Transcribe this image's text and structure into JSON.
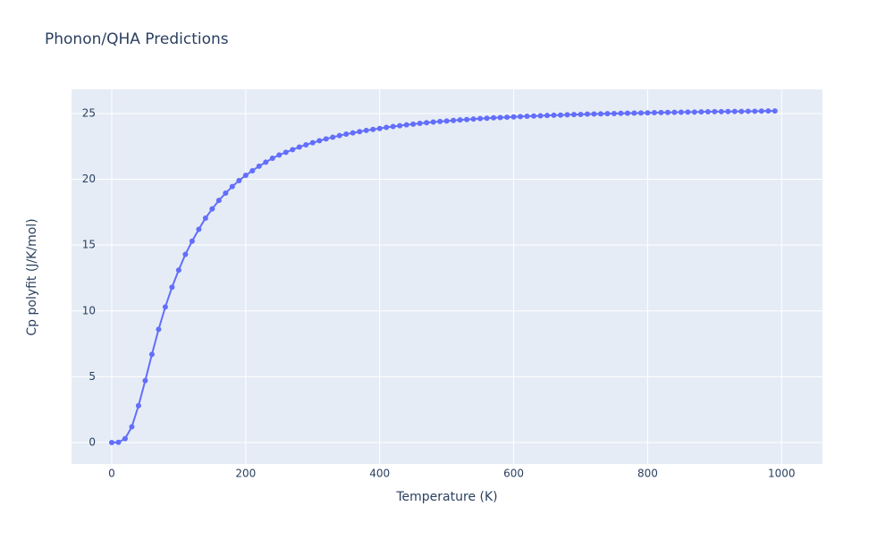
{
  "chart_data": {
    "type": "line",
    "title": "Phonon/QHA Predictions",
    "x_label": "Temperature (K)",
    "y_label": "Cp polyfit (J/K/mol)",
    "x": [
      0,
      10,
      20,
      30,
      40,
      50,
      60,
      70,
      80,
      90,
      100,
      110,
      120,
      130,
      140,
      150,
      160,
      170,
      180,
      190,
      200,
      210,
      220,
      230,
      240,
      250,
      260,
      270,
      280,
      290,
      300,
      310,
      320,
      330,
      340,
      350,
      360,
      370,
      380,
      390,
      400,
      410,
      420,
      430,
      440,
      450,
      460,
      470,
      480,
      490,
      500,
      510,
      520,
      530,
      540,
      550,
      560,
      570,
      580,
      590,
      600,
      610,
      620,
      630,
      640,
      650,
      660,
      670,
      680,
      690,
      700,
      710,
      720,
      730,
      740,
      750,
      760,
      770,
      780,
      790,
      800,
      810,
      820,
      830,
      840,
      850,
      860,
      870,
      880,
      890,
      900,
      910,
      920,
      930,
      940,
      950,
      960,
      970,
      980,
      990
    ],
    "series": [
      {
        "color": "#636efa",
        "values": [
          0,
          0.02,
          0.3,
          1.2,
          2.8,
          4.7,
          6.7,
          8.6,
          10.3,
          11.8,
          13.1,
          14.3,
          15.3,
          16.2,
          17.05,
          17.75,
          18.4,
          18.95,
          19.45,
          19.9,
          20.3,
          20.65,
          21.0,
          21.3,
          21.6,
          21.85,
          22.05,
          22.25,
          22.45,
          22.62,
          22.78,
          22.93,
          23.07,
          23.2,
          23.32,
          23.43,
          23.53,
          23.62,
          23.71,
          23.79,
          23.86,
          23.94,
          24.01,
          24.07,
          24.14,
          24.19,
          24.25,
          24.3,
          24.35,
          24.39,
          24.43,
          24.47,
          24.51,
          24.54,
          24.58,
          24.61,
          24.64,
          24.67,
          24.69,
          24.72,
          24.74,
          24.77,
          24.79,
          24.81,
          24.83,
          24.85,
          24.87,
          24.88,
          24.9,
          24.92,
          24.93,
          24.95,
          24.96,
          24.97,
          24.99,
          25.0,
          25.01,
          25.02,
          25.03,
          25.04,
          25.05,
          25.06,
          25.07,
          25.08,
          25.09,
          25.1,
          25.11,
          25.11,
          25.12,
          25.13,
          25.14,
          25.14,
          25.15,
          25.16,
          25.16,
          25.17,
          25.17,
          25.18,
          25.19,
          25.19
        ]
      }
    ],
    "xlim": [
      -60,
      1061
    ],
    "xticks": [
      0,
      200,
      400,
      600,
      800,
      1000
    ],
    "ylim": [
      -1.63,
      26.83
    ],
    "yticks": [
      0,
      5,
      10,
      15,
      20,
      25
    ],
    "grid": true
  }
}
